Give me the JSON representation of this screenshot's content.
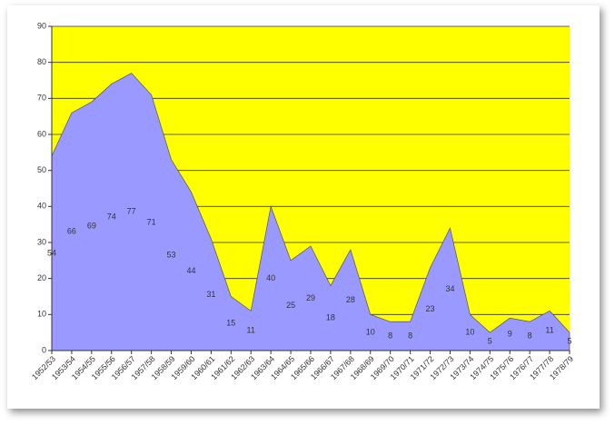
{
  "chart_data": {
    "type": "area",
    "categories": [
      "1952/53",
      "1953/54",
      "1954/55",
      "1955/56",
      "1956/57",
      "1957/58",
      "1958/59",
      "1959/60",
      "1960/61",
      "1961/62",
      "1962/63",
      "1963/64",
      "1964/65",
      "1965/66",
      "1966/67",
      "1967/68",
      "1968/69",
      "1969/70",
      "1970/71",
      "1971/72",
      "1972/73",
      "1973/74",
      "1974/75",
      "1975/76",
      "1976/77",
      "1977/78",
      "1978/79"
    ],
    "values": [
      54,
      66,
      69,
      74,
      77,
      71,
      53,
      44,
      31,
      15,
      11,
      40,
      25,
      29,
      18,
      28,
      10,
      8,
      8,
      23,
      34,
      10,
      5,
      9,
      8,
      11,
      5
    ],
    "color": "#9999ff",
    "background": "#ffff00",
    "ylim": [
      0,
      90
    ],
    "yticks": [
      0,
      10,
      20,
      30,
      40,
      50,
      60,
      70,
      80,
      90
    ],
    "grid": true
  }
}
